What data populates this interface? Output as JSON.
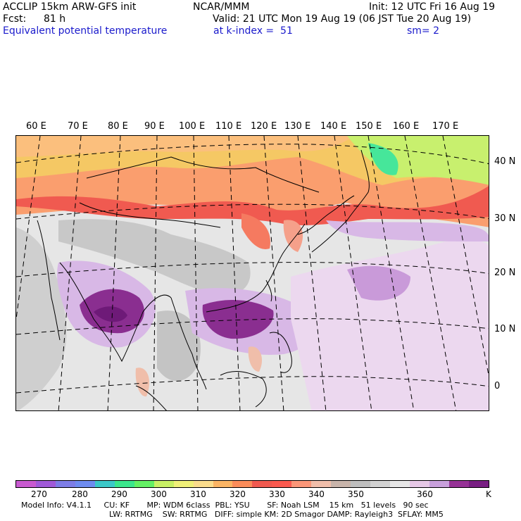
{
  "header": {
    "title": "ACCLIP 15km ARW-GFS init",
    "center": "NCAR/MMM",
    "init": "Init: 12 UTC Fri 16 Aug 19",
    "fcst_label": "Fcst:",
    "fcst_value": "81 h",
    "valid": "Valid: 21 UTC Mon 19 Aug 19 (06 JST Tue 20 Aug 19)",
    "field": "Equivalent potential temperature",
    "level": "at k-index =  51",
    "smooth": "sm= 2"
  },
  "map": {
    "lon_labels": [
      "60 E",
      "70 E",
      "80 E",
      "90 E",
      "100 E",
      "110 E",
      "120 E",
      "130 E",
      "140 E",
      "150 E",
      "160 E",
      "170 E"
    ],
    "lat_labels": [
      "40 N",
      "30 N",
      "20 N",
      "10 N",
      "0"
    ]
  },
  "colorbar": {
    "unit": "K",
    "ticks": [
      "270",
      "280",
      "290",
      "300",
      "310",
      "320",
      "330",
      "340",
      "350",
      "360"
    ],
    "colors": [
      "#c85ad0",
      "#a05ad8",
      "#7d7de6",
      "#6e8cf0",
      "#3cc8c8",
      "#3ce68c",
      "#64f064",
      "#c8f064",
      "#f0f078",
      "#fadc8c",
      "#fab464",
      "#fa8c5a",
      "#f05a50",
      "#fa5a50",
      "#fa9678",
      "#f0beaa",
      "#c8b4aa",
      "#bebebe",
      "#d2d2d2",
      "#e6e6e6",
      "#e6c8e6",
      "#c8a0dc",
      "#963296",
      "#781e82"
    ]
  },
  "model_info": {
    "line1": "Model Info: V4.1.1     CU: KF       MP: WDM 6class  PBL: YSU       SF: Noah LSM    15 km   51 levels   90 sec",
    "line2": "LW: RRTMG    SW: RRTMG   DIFF: simple KM: 2D Smagor DAMP: Rayleigh3  SFLAY: MM5"
  }
}
